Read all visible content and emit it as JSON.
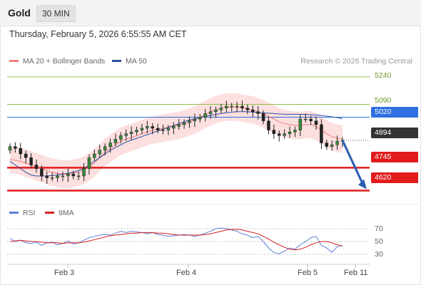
{
  "header": {
    "title": "Gold",
    "timeframe": "30 MIN"
  },
  "datetime": "Thursday, February 5, 2026 6:55:55 AM CET",
  "legend": {
    "ma20": "MA 20 + Bollinger Bands",
    "ma50": "MA 50",
    "credit": "Research © 2026 Trading Central",
    "rsi": "RSI",
    "rsi_ma": "9MA"
  },
  "colors": {
    "ma20": "#f08080",
    "bands": "#fcd9d9",
    "ma50": "#2b4fa0",
    "resistance": "#8fc14a",
    "pivot": "#2f6fe0",
    "support": "#e21b1b",
    "last": "#333333",
    "rsi": "#5b7fd6",
    "rsi_ma": "#d61f1f",
    "arrow": "#2a5db0"
  },
  "levels": [
    {
      "value": "5240",
      "kind": "resistance"
    },
    {
      "value": "5090",
      "kind": "resistance"
    },
    {
      "value": "5020",
      "kind": "pivot"
    },
    {
      "value": "4894",
      "kind": "last"
    },
    {
      "value": "4745",
      "kind": "support"
    },
    {
      "value": "4620",
      "kind": "support"
    }
  ],
  "rsi_levels": [
    "70",
    "50",
    "30"
  ],
  "x_labels": [
    "Feb 3",
    "Feb 4",
    "Feb 5",
    "Feb 11"
  ],
  "chart_data": [
    {
      "type": "candlestick",
      "title": "Gold",
      "ylim": [
        4560,
        5290
      ],
      "x_ticks": [
        "Feb 3",
        "Feb 4",
        "Feb 5",
        "Feb 11"
      ],
      "close_approx": [
        4860,
        4850,
        4820,
        4800,
        4760,
        4740,
        4700,
        4690,
        4690,
        4700,
        4700,
        4710,
        4700,
        4700,
        4740,
        4800,
        4820,
        4840,
        4860,
        4880,
        4900,
        4920,
        4930,
        4940,
        4950,
        4960,
        4970,
        4960,
        4950,
        4950,
        4960,
        4970,
        4980,
        4990,
        5000,
        5010,
        5020,
        5040,
        5050,
        5060,
        5070,
        5080,
        5080,
        5080,
        5070,
        5060,
        5050,
        5040,
        5000,
        4950,
        4930,
        4920,
        4930,
        4940,
        4950,
        5010,
        5010,
        5000,
        4980,
        4880,
        4860,
        4870,
        4890,
        4894
      ],
      "ma20_approx": [
        4790,
        4785,
        4780,
        4770,
        4760,
        4750,
        4740,
        4730,
        4720,
        4715,
        4710,
        4710,
        4715,
        4720,
        4730,
        4750,
        4770,
        4800,
        4830,
        4850,
        4870,
        4890,
        4900,
        4910,
        4920,
        4930,
        4940,
        4950,
        4955,
        4960,
        4965,
        4970,
        4975,
        4985,
        4995,
        5005,
        5020,
        5035,
        5050,
        5060,
        5070,
        5075,
        5075,
        5075,
        5070,
        5065,
        5060,
        5050,
        5040,
        5025,
        5010,
        4995,
        4985,
        4980,
        4975,
        4975,
        4980,
        4980,
        4970,
        4950,
        4930,
        4915,
        4905,
        4900
      ],
      "ma50_approx": [
        4780,
        4760,
        4740,
        4720,
        4705,
        4700,
        4700,
        4700,
        4702,
        4705,
        4710,
        4715,
        4720,
        4730,
        4740,
        4760,
        4780,
        4800,
        4820,
        4840,
        4855,
        4870,
        4885,
        4895,
        4905,
        4915,
        4925,
        4935,
        4945,
        4955,
        4965,
        4975,
        4985,
        4995,
        5005,
        5012,
        5018,
        5025,
        5030,
        5035,
        5040,
        5045,
        5048,
        5050,
        5050,
        5050,
        5048,
        5046,
        5044,
        5042,
        5040,
        5038,
        5036,
        5036,
        5036,
        5036,
        5035,
        5034,
        5032,
        5030,
        5026,
        5022,
        5018,
        5012
      ],
      "levels": [
        5240,
        5090,
        5020,
        4894,
        4745,
        4620
      ]
    },
    {
      "type": "line",
      "series": [
        {
          "name": "RSI",
          "values": [
            55,
            50,
            52,
            48,
            47,
            49,
            44,
            48,
            49,
            45,
            47,
            51,
            46,
            48,
            52,
            56,
            58,
            60,
            61,
            60,
            63,
            66,
            64,
            66,
            65,
            64,
            62,
            64,
            61,
            60,
            58,
            59,
            60,
            61,
            60,
            58,
            60,
            63,
            66,
            70,
            71,
            70,
            68,
            66,
            62,
            60,
            56,
            58,
            50,
            40,
            33,
            31,
            35,
            40,
            38,
            45,
            50,
            56,
            58,
            44,
            40,
            33,
            42,
            44
          ]
        },
        {
          "name": "9MA",
          "values": [
            50,
            51,
            52,
            51,
            50,
            50,
            49,
            48,
            48,
            48,
            47,
            48,
            48,
            48,
            49,
            51,
            53,
            55,
            57,
            59,
            60,
            61,
            62,
            63,
            63,
            64,
            64,
            64,
            63,
            63,
            62,
            61,
            60,
            60,
            60,
            60,
            60,
            61,
            62,
            64,
            66,
            68,
            69,
            69,
            68,
            66,
            64,
            62,
            58,
            54,
            49,
            45,
            41,
            38,
            37,
            38,
            41,
            45,
            48,
            50,
            50,
            48,
            45,
            43
          ]
        }
      ],
      "ylim": [
        20,
        80
      ],
      "levels": [
        70,
        50,
        30
      ]
    }
  ]
}
